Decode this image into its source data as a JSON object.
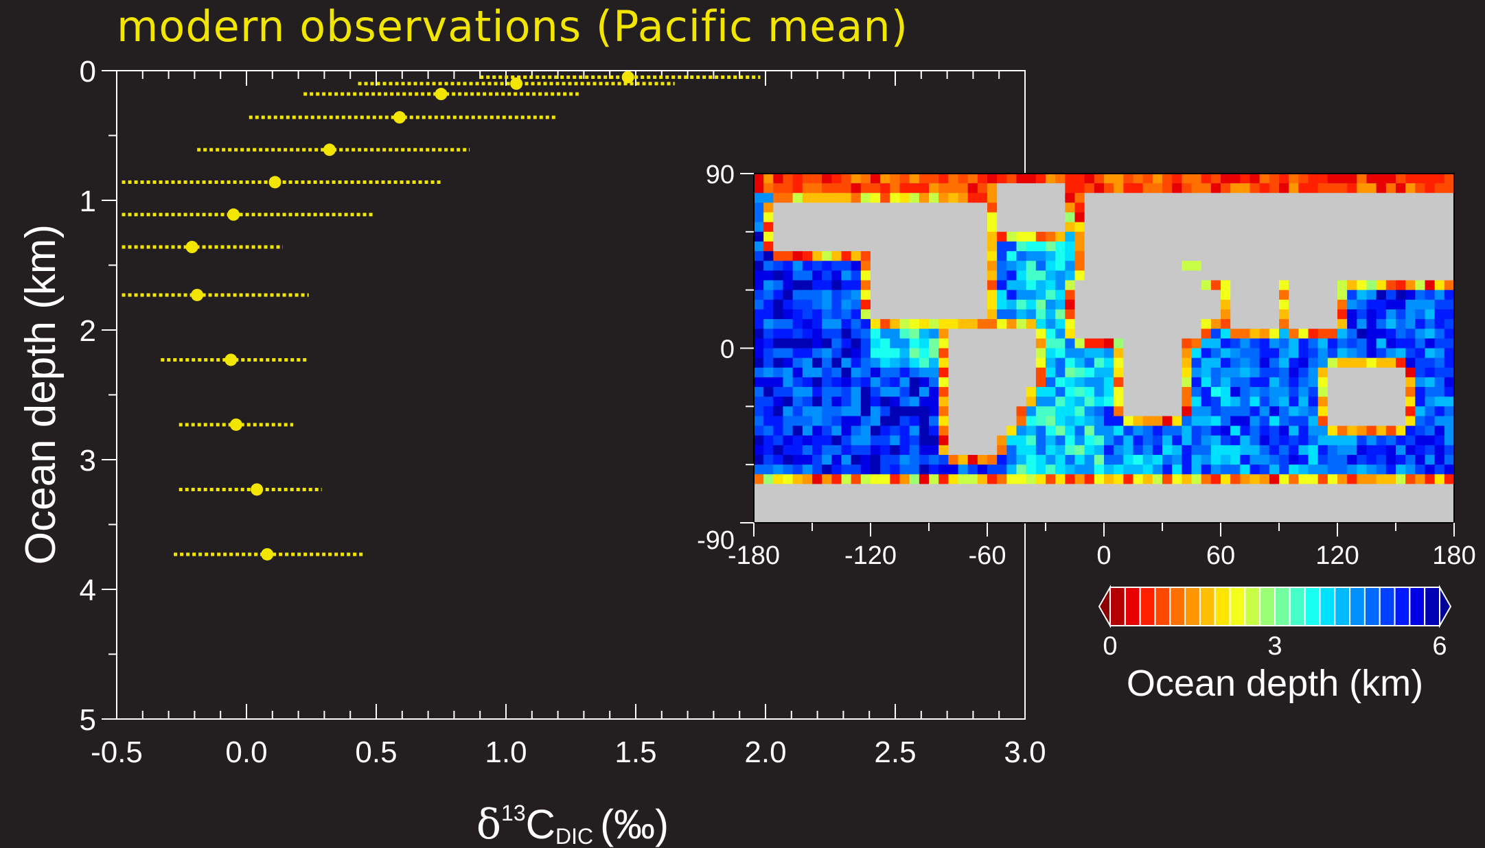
{
  "title": "modern observations (Pacific mean)",
  "chart_data": {
    "type": "scatter",
    "title": "modern observations (Pacific mean)",
    "xlabel_parts": {
      "delta": "δ",
      "sup": "13",
      "base": "C",
      "sub": "DIC",
      "unit": "(‰)"
    },
    "ylabel": "Ocean depth (km)",
    "xlim": [
      -0.5,
      3.0
    ],
    "ylim": [
      5,
      0
    ],
    "y_inverted": true,
    "xticks": [
      "-0.5",
      "0.0",
      "0.5",
      "1.0",
      "1.5",
      "2.0",
      "2.5",
      "3.0"
    ],
    "yticks": [
      "0",
      "1",
      "2",
      "3",
      "4",
      "5"
    ],
    "point_color": "#f2e600",
    "points": [
      {
        "depth": 0.05,
        "mean": 1.47,
        "min": 0.9,
        "max": 1.98
      },
      {
        "depth": 0.1,
        "mean": 1.04,
        "min": 0.43,
        "max": 1.65
      },
      {
        "depth": 0.18,
        "mean": 0.75,
        "min": 0.22,
        "max": 1.28
      },
      {
        "depth": 0.36,
        "mean": 0.59,
        "min": 0.01,
        "max": 1.2
      },
      {
        "depth": 0.61,
        "mean": 0.32,
        "min": -0.19,
        "max": 0.86
      },
      {
        "depth": 0.86,
        "mean": 0.11,
        "min": -0.48,
        "max": 0.75
      },
      {
        "depth": 1.11,
        "mean": -0.05,
        "min": -0.48,
        "max": 0.49
      },
      {
        "depth": 1.36,
        "mean": -0.21,
        "min": -0.48,
        "max": 0.14
      },
      {
        "depth": 1.73,
        "mean": -0.19,
        "min": -0.48,
        "max": 0.24
      },
      {
        "depth": 2.23,
        "mean": -0.06,
        "min": -0.33,
        "max": 0.24
      },
      {
        "depth": 2.73,
        "mean": -0.04,
        "min": -0.26,
        "max": 0.18
      },
      {
        "depth": 3.23,
        "mean": 0.04,
        "min": -0.26,
        "max": 0.29
      },
      {
        "depth": 3.73,
        "mean": 0.08,
        "min": -0.28,
        "max": 0.45
      }
    ],
    "inset_map": {
      "type": "heatmap",
      "xticks": [
        "-180",
        "-120",
        "-60",
        "0",
        "60",
        "120",
        "180"
      ],
      "yticks": [
        "90",
        "0",
        "-90"
      ],
      "land_color": "#c8c8c8",
      "colorbar": {
        "label": "Ocean depth (km)",
        "ticks": [
          "0",
          "3",
          "6"
        ],
        "range": [
          0,
          6
        ],
        "colors": [
          "#b30000",
          "#e60000",
          "#ff2000",
          "#ff4800",
          "#ff7000",
          "#ff9600",
          "#ffbe00",
          "#ffe400",
          "#f2ff19",
          "#c8ff46",
          "#9bff73",
          "#73ffa0",
          "#46ffc8",
          "#19fff2",
          "#00e1ff",
          "#00b9ff",
          "#0091ff",
          "#0069ff",
          "#0041ff",
          "#0019ff",
          "#0000e6",
          "#0000b4"
        ]
      }
    }
  }
}
